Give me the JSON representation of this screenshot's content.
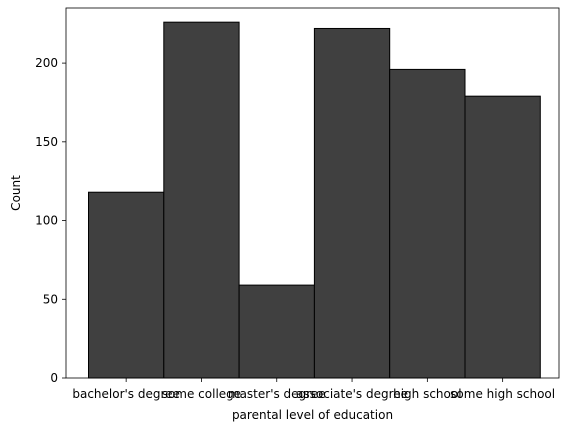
{
  "chart_data": {
    "type": "bar",
    "title": "",
    "xlabel": "parental level of education",
    "ylabel": "Count",
    "categories": [
      "bachelor's degree",
      "some college",
      "master's degree",
      "associate's degree",
      "high school",
      "some high school"
    ],
    "values": [
      118,
      226,
      59,
      222,
      196,
      179
    ],
    "ylim": [
      0,
      235
    ],
    "yticks": [
      "0",
      "50",
      "100",
      "150",
      "200"
    ],
    "ytick_values": [
      0,
      50,
      100,
      150,
      200
    ],
    "grid": false,
    "bar_color": "#404040",
    "edge_color": "#000000"
  }
}
